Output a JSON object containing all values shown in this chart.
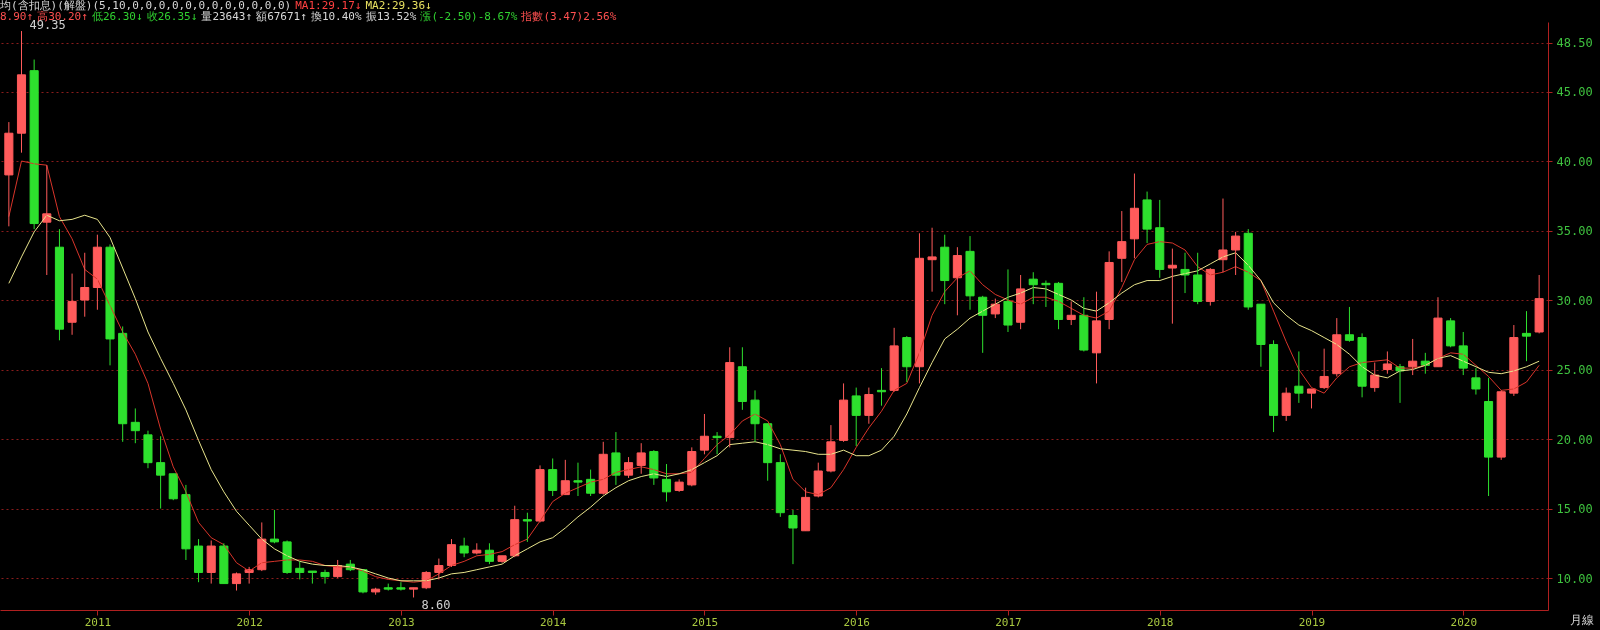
{
  "chart_data": {
    "type": "candlestick",
    "title": "均(含扣息)(解盤)(5,10,0,0,0,0,0,0,0,0,0,0,0,0)",
    "annotations": [
      "MA1:29.17↓",
      "MA2:29.36↓",
      "8.90↑",
      "高30.20↑",
      "低26.30↓",
      "收26.35↓",
      "量23643↑",
      "額67671↑",
      "換10.40%",
      "振13.52%",
      "漲(-2.50)-8.67%",
      "指數(3.47)2.56%",
      "49.35",
      "8.60",
      "月線"
    ],
    "categories": [
      null,
      null,
      null,
      null,
      null,
      null,
      null,
      "2011",
      null,
      null,
      null,
      null,
      null,
      null,
      null,
      null,
      null,
      null,
      null,
      "2012",
      null,
      null,
      null,
      null,
      null,
      null,
      null,
      null,
      null,
      null,
      null,
      "2013",
      null,
      null,
      null,
      null,
      null,
      null,
      null,
      null,
      null,
      null,
      null,
      "2014",
      null,
      null,
      null,
      null,
      null,
      null,
      null,
      null,
      null,
      null,
      null,
      "2015",
      null,
      null,
      null,
      null,
      null,
      null,
      null,
      null,
      null,
      null,
      null,
      "2016",
      null,
      null,
      null,
      null,
      null,
      null,
      null,
      null,
      null,
      null,
      null,
      "2017",
      null,
      null,
      null,
      null,
      null,
      null,
      null,
      null,
      null,
      null,
      null,
      "2018",
      null,
      null,
      null,
      null,
      null,
      null,
      null,
      null,
      null,
      null,
      null,
      "2019",
      null,
      null,
      null,
      null,
      null,
      null,
      null,
      null,
      null,
      null,
      null,
      "2020",
      null,
      null,
      null,
      null,
      null,
      null
    ],
    "ohlc": [
      [
        39.0,
        42.8,
        35.3,
        42.0
      ],
      [
        42.0,
        49.35,
        40.6,
        46.2
      ],
      [
        46.5,
        47.3,
        35.1,
        35.5
      ],
      [
        35.6,
        39.7,
        31.8,
        36.2
      ],
      [
        33.8,
        35.1,
        27.1,
        27.9
      ],
      [
        28.4,
        31.9,
        27.5,
        29.9
      ],
      [
        30.0,
        33.4,
        28.8,
        30.9
      ],
      [
        30.9,
        34.7,
        29.3,
        33.8
      ],
      [
        33.8,
        34.0,
        25.3,
        27.2
      ],
      [
        27.6,
        28.1,
        19.8,
        21.1
      ],
      [
        21.2,
        22.2,
        19.7,
        20.6
      ],
      [
        20.3,
        20.6,
        17.9,
        18.3
      ],
      [
        18.3,
        20.2,
        15.0,
        17.4
      ],
      [
        17.5,
        17.5,
        15.6,
        15.7
      ],
      [
        16.0,
        16.7,
        11.3,
        12.1
      ],
      [
        12.3,
        12.8,
        9.7,
        10.4
      ],
      [
        10.4,
        12.7,
        9.6,
        12.3
      ],
      [
        12.3,
        12.5,
        9.6,
        9.6
      ],
      [
        9.6,
        10.4,
        9.1,
        10.3
      ],
      [
        10.4,
        10.8,
        9.6,
        10.6
      ],
      [
        10.6,
        14.0,
        10.5,
        12.8
      ],
      [
        12.8,
        14.9,
        12.5,
        12.6
      ],
      [
        12.6,
        12.7,
        10.3,
        10.4
      ],
      [
        10.7,
        11.2,
        9.9,
        10.4
      ],
      [
        10.5,
        10.5,
        9.6,
        10.4
      ],
      [
        10.4,
        10.6,
        9.6,
        10.1
      ],
      [
        10.1,
        11.3,
        10.0,
        10.9
      ],
      [
        11.0,
        11.3,
        10.5,
        10.6
      ],
      [
        10.6,
        10.6,
        8.9,
        9.0
      ],
      [
        9.0,
        9.3,
        8.8,
        9.2
      ],
      [
        9.3,
        9.6,
        9.1,
        9.2
      ],
      [
        9.3,
        9.7,
        9.1,
        9.2
      ],
      [
        9.2,
        9.3,
        8.6,
        9.3
      ],
      [
        9.3,
        10.5,
        9.2,
        10.4
      ],
      [
        10.4,
        11.4,
        9.9,
        10.9
      ],
      [
        10.9,
        12.8,
        10.8,
        12.4
      ],
      [
        12.3,
        12.9,
        11.5,
        11.8
      ],
      [
        11.8,
        12.5,
        11.7,
        12.0
      ],
      [
        12.0,
        12.5,
        11.0,
        11.2
      ],
      [
        11.2,
        11.6,
        11.1,
        11.6
      ],
      [
        11.6,
        15.2,
        11.5,
        14.2
      ],
      [
        14.2,
        14.7,
        12.6,
        14.1
      ],
      [
        14.1,
        18.1,
        14.0,
        17.8
      ],
      [
        17.8,
        18.6,
        15.9,
        16.3
      ],
      [
        16.0,
        18.5,
        16.0,
        17.0
      ],
      [
        17.0,
        18.3,
        15.9,
        16.9
      ],
      [
        17.1,
        17.8,
        15.9,
        16.1
      ],
      [
        16.1,
        19.8,
        16.0,
        18.9
      ],
      [
        19.0,
        20.5,
        16.7,
        17.4
      ],
      [
        17.4,
        18.7,
        17.2,
        18.3
      ],
      [
        18.1,
        19.7,
        17.5,
        19.0
      ],
      [
        19.1,
        19.2,
        16.7,
        17.2
      ],
      [
        17.1,
        18.2,
        15.5,
        16.2
      ],
      [
        16.3,
        17.1,
        16.2,
        16.9
      ],
      [
        16.7,
        19.4,
        16.6,
        19.1
      ],
      [
        19.2,
        21.8,
        18.9,
        20.2
      ],
      [
        20.2,
        20.5,
        18.9,
        20.1
      ],
      [
        20.1,
        26.6,
        19.4,
        25.5
      ],
      [
        25.2,
        26.6,
        22.1,
        22.7
      ],
      [
        22.8,
        23.5,
        19.8,
        21.1
      ],
      [
        21.1,
        21.1,
        17.0,
        18.3
      ],
      [
        18.3,
        18.9,
        14.4,
        14.7
      ],
      [
        14.5,
        14.9,
        11.0,
        13.6
      ],
      [
        13.4,
        16.5,
        13.4,
        15.8
      ],
      [
        15.9,
        18.3,
        15.8,
        17.7
      ],
      [
        17.7,
        21.0,
        17.6,
        19.8
      ],
      [
        19.9,
        24.0,
        19.8,
        22.8
      ],
      [
        23.1,
        23.7,
        19.5,
        21.7
      ],
      [
        21.7,
        23.7,
        21.1,
        23.2
      ],
      [
        23.5,
        25.1,
        22.4,
        23.4
      ],
      [
        23.5,
        28.0,
        23.4,
        26.7
      ],
      [
        27.3,
        27.4,
        24.1,
        25.2
      ],
      [
        25.2,
        34.8,
        24.0,
        33.0
      ],
      [
        32.9,
        35.2,
        30.6,
        33.1
      ],
      [
        33.8,
        34.7,
        29.7,
        31.4
      ],
      [
        31.6,
        33.8,
        28.9,
        33.2
      ],
      [
        33.5,
        34.6,
        29.3,
        30.3
      ],
      [
        30.2,
        30.3,
        26.2,
        28.9
      ],
      [
        29.0,
        30.1,
        28.7,
        29.7
      ],
      [
        29.9,
        32.2,
        27.7,
        28.2
      ],
      [
        28.4,
        31.8,
        27.9,
        30.8
      ],
      [
        31.5,
        32.0,
        29.7,
        31.1
      ],
      [
        31.2,
        31.4,
        29.5,
        31.1
      ],
      [
        31.2,
        31.3,
        27.9,
        28.6
      ],
      [
        28.6,
        29.9,
        28.2,
        28.9
      ],
      [
        28.9,
        30.2,
        26.3,
        26.4
      ],
      [
        26.2,
        30.6,
        24.0,
        28.5
      ],
      [
        28.6,
        33.5,
        27.9,
        32.7
      ],
      [
        33.0,
        36.4,
        31.3,
        34.2
      ],
      [
        34.4,
        39.1,
        33.0,
        36.6
      ],
      [
        37.2,
        37.8,
        34.1,
        35.1
      ],
      [
        35.2,
        37.2,
        31.6,
        32.2
      ],
      [
        32.3,
        33.7,
        28.3,
        32.5
      ],
      [
        32.2,
        33.4,
        30.5,
        31.8
      ],
      [
        31.8,
        33.4,
        29.7,
        29.9
      ],
      [
        29.9,
        32.3,
        29.6,
        32.2
      ],
      [
        32.9,
        37.3,
        32.0,
        33.6
      ],
      [
        33.6,
        34.9,
        31.8,
        34.6
      ],
      [
        34.8,
        35.1,
        29.3,
        29.5
      ],
      [
        29.7,
        29.7,
        25.2,
        26.8
      ],
      [
        26.8,
        27.1,
        20.5,
        21.7
      ],
      [
        21.7,
        23.7,
        21.3,
        23.3
      ],
      [
        23.8,
        26.3,
        22.6,
        23.3
      ],
      [
        23.3,
        23.6,
        22.2,
        23.6
      ],
      [
        23.7,
        26.5,
        23.6,
        24.5
      ],
      [
        24.7,
        28.7,
        24.5,
        27.5
      ],
      [
        27.5,
        29.5,
        27.0,
        27.1
      ],
      [
        27.3,
        27.6,
        23.0,
        23.8
      ],
      [
        23.7,
        25.5,
        23.4,
        24.6
      ],
      [
        25.0,
        26.3,
        24.7,
        25.4
      ],
      [
        25.2,
        25.4,
        22.6,
        24.9
      ],
      [
        25.2,
        27.2,
        24.6,
        25.6
      ],
      [
        25.6,
        26.2,
        24.7,
        25.3
      ],
      [
        25.2,
        30.2,
        25.2,
        28.7
      ],
      [
        28.5,
        28.7,
        26.6,
        26.7
      ],
      [
        26.7,
        27.7,
        24.6,
        25.1
      ],
      [
        24.4,
        25.1,
        23.2,
        23.6
      ],
      [
        22.7,
        24.4,
        15.9,
        18.7
      ],
      [
        18.7,
        23.5,
        18.5,
        23.4
      ],
      [
        23.3,
        28.2,
        23.1,
        27.3
      ],
      [
        27.6,
        29.2,
        25.6,
        27.4
      ],
      [
        27.7,
        31.8,
        27.6,
        30.1
      ]
    ],
    "colors": [
      "#ff5b5b",
      "#ff5b5b",
      "#2ee02e",
      "#ff5b5b",
      "#2ee02e",
      "#ff5b5b",
      "#ff5b5b",
      "#ff5b5b",
      "#2ee02e",
      "#2ee02e",
      "#2ee02e",
      "#2ee02e",
      "#2ee02e",
      "#2ee02e",
      "#2ee02e",
      "#2ee02e",
      "#ff5b5b",
      "#2ee02e",
      "#ff5b5b",
      "#ff5b5b",
      "#ff5b5b",
      "#2ee02e",
      "#2ee02e",
      "#2ee02e",
      "#2ee02e",
      "#2ee02e",
      "#ff5b5b",
      "#2ee02e",
      "#2ee02e",
      "#ff5b5b",
      "#2ee02e",
      "#2ee02e",
      "#ff5b5b",
      "#ff5b5b",
      "#ff5b5b",
      "#ff5b5b",
      "#2ee02e",
      "#ff5b5b",
      "#2ee02e",
      "#ff5b5b",
      "#ff5b5b",
      "#2ee02e",
      "#ff5b5b",
      "#2ee02e",
      "#ff5b5b",
      "#2ee02e",
      "#2ee02e",
      "#ff5b5b",
      "#2ee02e",
      "#ff5b5b",
      "#ff5b5b",
      "#2ee02e",
      "#2ee02e",
      "#ff5b5b",
      "#ff5b5b",
      "#ff5b5b",
      "#2ee02e",
      "#ff5b5b",
      "#2ee02e",
      "#2ee02e",
      "#2ee02e",
      "#2ee02e",
      "#2ee02e",
      "#ff5b5b",
      "#ff5b5b",
      "#ff5b5b",
      "#ff5b5b",
      "#2ee02e",
      "#ff5b5b",
      "#2ee02e",
      "#ff5b5b",
      "#2ee02e",
      "#ff5b5b",
      "#ff5b5b",
      "#2ee02e",
      "#ff5b5b",
      "#2ee02e",
      "#2ee02e",
      "#ff5b5b",
      "#2ee02e",
      "#ff5b5b",
      "#2ee02e",
      "#2ee02e",
      "#2ee02e",
      "#ff5b5b",
      "#2ee02e",
      "#ff5b5b",
      "#ff5b5b",
      "#ff5b5b",
      "#ff5b5b",
      "#2ee02e",
      "#2ee02e",
      "#ff5b5b",
      "#2ee02e",
      "#2ee02e",
      "#ff5b5b",
      "#ff5b5b",
      "#ff5b5b",
      "#2ee02e",
      "#2ee02e",
      "#2ee02e",
      "#ff5b5b",
      "#2ee02e",
      "#ff5b5b",
      "#ff5b5b",
      "#ff5b5b",
      "#2ee02e",
      "#2ee02e",
      "#ff5b5b",
      "#ff5b5b",
      "#2ee02e",
      "#ff5b5b",
      "#2ee02e",
      "#ff5b5b",
      "#2ee02e",
      "#2ee02e",
      "#2ee02e",
      "#2ee02e",
      "#ff5b5b",
      "#ff5b5b",
      "#2ee02e",
      "#ff5b5b"
    ],
    "series": [
      {
        "type": "line",
        "color": "#d8342a",
        "values": [
          36.0,
          40.0,
          39.8,
          39.7,
          36.0,
          34.4,
          32.2,
          31.5,
          29.6,
          27.7,
          26.1,
          24.0,
          20.7,
          18.0,
          16.2,
          14.0,
          12.9,
          12.4,
          11.1,
          10.5,
          11.1,
          11.2,
          11.3,
          11.3,
          11.2,
          10.9,
          10.8,
          10.8,
          10.5,
          10.1,
          9.9,
          9.8,
          9.7,
          9.8,
          10.3,
          10.9,
          11.2,
          11.6,
          11.7,
          11.9,
          12.4,
          12.8,
          14.1,
          15.5,
          16.1,
          16.5,
          16.9,
          17.1,
          17.6,
          17.8,
          18.0,
          17.8,
          17.5,
          17.5,
          17.6,
          18.6,
          19.6,
          20.3,
          21.3,
          21.8,
          21.3,
          19.6,
          17.1,
          16.2,
          16.0,
          16.5,
          17.8,
          19.4,
          20.8,
          22.0,
          23.5,
          24.0,
          26.2,
          28.9,
          30.6,
          31.6,
          32.1,
          31.1,
          30.4,
          30.0,
          29.7,
          30.2,
          30.2,
          29.9,
          29.4,
          28.9,
          28.7,
          29.2,
          30.9,
          32.9,
          34.0,
          34.2,
          34.1,
          33.6,
          32.4,
          31.8,
          32.0,
          32.4,
          32.0,
          31.4,
          29.2,
          27.0,
          25.0,
          23.7,
          23.3,
          24.4,
          25.2,
          25.5,
          25.6,
          25.7,
          25.1,
          25.1,
          25.3,
          25.8,
          26.2,
          26.1,
          25.3,
          24.5,
          23.5,
          23.6,
          24.1,
          25.3
        ]
      },
      {
        "type": "line",
        "color": "#e8e48c",
        "values": [
          31.2,
          33.1,
          34.9,
          36.1,
          35.7,
          35.8,
          36.1,
          35.8,
          34.5,
          32.3,
          30.1,
          27.7,
          25.8,
          24.0,
          22.1,
          19.9,
          17.8,
          16.2,
          14.8,
          13.8,
          12.8,
          12.1,
          11.6,
          11.2,
          11.0,
          10.9,
          10.9,
          10.8,
          10.6,
          10.3,
          10.0,
          9.8,
          9.8,
          9.8,
          10.0,
          10.3,
          10.4,
          10.6,
          10.8,
          11.0,
          11.6,
          12.1,
          12.6,
          12.9,
          13.6,
          14.4,
          15.1,
          15.9,
          16.5,
          17.0,
          17.3,
          17.5,
          17.3,
          17.5,
          17.8,
          18.3,
          18.8,
          19.6,
          19.7,
          19.8,
          19.6,
          19.3,
          19.2,
          19.1,
          18.9,
          18.9,
          19.2,
          18.8,
          18.8,
          19.2,
          20.2,
          21.8,
          23.7,
          25.5,
          27.2,
          27.9,
          28.7,
          29.2,
          29.7,
          30.2,
          30.5,
          30.9,
          30.8,
          30.4,
          30.0,
          29.4,
          29.2,
          29.8,
          30.5,
          31.1,
          31.4,
          31.4,
          31.7,
          31.9,
          32.1,
          32.6,
          33.1,
          33.4,
          32.5,
          31.4,
          29.8,
          28.9,
          28.2,
          27.8,
          27.3,
          26.8,
          26.1,
          25.2,
          24.6,
          24.4,
          24.9,
          25.0,
          25.3,
          25.8,
          26.0,
          25.6,
          25.2,
          24.8,
          24.7,
          24.9,
          25.2,
          25.6
        ]
      }
    ],
    "ylim": [
      7.7,
      50
    ],
    "yticks": [
      {
        "value": 10,
        "label": "10.00"
      },
      {
        "value": 15,
        "label": "15.00"
      },
      {
        "value": 20,
        "label": "20.00"
      },
      {
        "value": 25,
        "label": "25.00"
      },
      {
        "value": 30,
        "label": "30.00"
      },
      {
        "value": 35,
        "label": "35.00"
      },
      {
        "value": 40,
        "label": "40.00"
      },
      {
        "value": 45,
        "label": "45.00"
      },
      {
        "value": 48.5,
        "label": "48.50"
      }
    ],
    "grid": "y"
  }
}
